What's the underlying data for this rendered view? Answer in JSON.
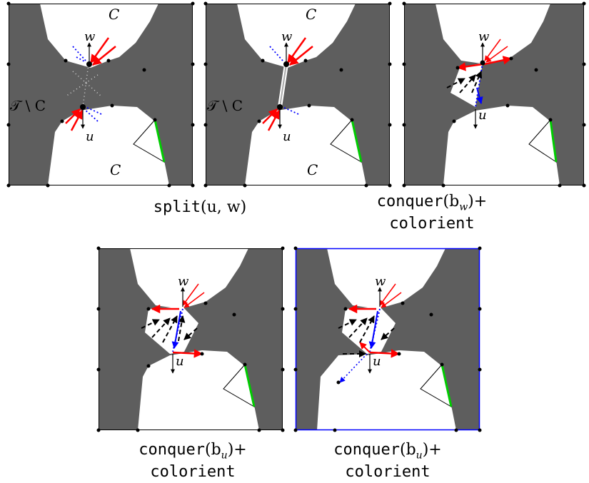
{
  "labels": {
    "C": "C",
    "T_minus_C": "𝒯 \\ C",
    "w": "w",
    "u": "u"
  },
  "captions": [
    {
      "pre": "split",
      "args": "(u, w)",
      "post": "",
      "line2": ""
    },
    {
      "pre": "conquer",
      "args": "(b",
      "sub": "w",
      "close": ")+",
      "line2": "colorient"
    },
    {
      "pre": "conquer",
      "args": "(b",
      "sub": "u",
      "close": ")+",
      "line2": "colorient"
    },
    {
      "pre": "conquer",
      "args": "(b",
      "sub": "u",
      "close": ")+",
      "line2": "colorient"
    }
  ],
  "colors": {
    "region": "#5e5e5e",
    "border": "#000000",
    "red_edge": "#ff0000",
    "blue_edge": "#0000ff",
    "green_edge": "#00cc00",
    "dotted_white": "#d8d8d8",
    "frame_highlight": "#0000ff"
  },
  "icons": [
    "arrow-icon",
    "dot-icon"
  ]
}
